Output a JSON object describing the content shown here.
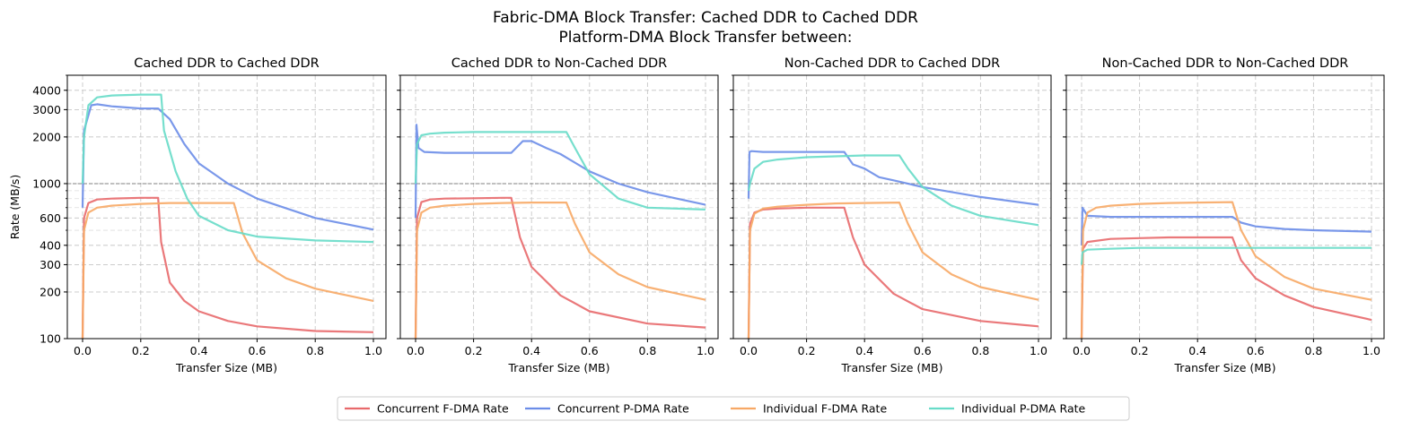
{
  "figure": {
    "title_line1": "Fabric-DMA Block Transfer: Cached DDR to Cached DDR",
    "title_line2": "Platform-DMA Block Transfer between:",
    "colors": {
      "concurrent_fdma": "#e8696b",
      "concurrent_pdma": "#6b8de8",
      "individual_fdma": "#f7a865",
      "individual_pdma": "#67dcc8"
    }
  },
  "legend": {
    "placement": "bottom-center",
    "entries": [
      {
        "key": "concurrent_fdma",
        "label": "Concurrent F-DMA Rate"
      },
      {
        "key": "concurrent_pdma",
        "label": "Concurrent P-DMA Rate"
      },
      {
        "key": "individual_fdma",
        "label": "Individual F-DMA Rate"
      },
      {
        "key": "individual_pdma",
        "label": "Individual P-DMA Rate"
      }
    ]
  },
  "chart_data": [
    {
      "type": "line",
      "title": "Cached DDR to Cached DDR",
      "xlabel": "Transfer Size (MB)",
      "ylabel": "Rate (MB/s)",
      "yscale": "log",
      "xlim": [
        0,
        1.0
      ],
      "ylim": [
        100,
        5000
      ],
      "xticks": [
        "0.0",
        "0.2",
        "0.4",
        "0.6",
        "0.8",
        "1.0"
      ],
      "yticks": [
        100,
        200,
        300,
        400,
        600,
        1000,
        2000,
        3000,
        4000
      ],
      "reference_line": 1000,
      "grid": true,
      "series": [
        {
          "key": "concurrent_fdma",
          "x": [
            0,
            0.005,
            0.02,
            0.05,
            0.1,
            0.2,
            0.26,
            0.27,
            0.3,
            0.35,
            0.4,
            0.5,
            0.6,
            0.8,
            1.0
          ],
          "y": [
            100,
            600,
            750,
            790,
            800,
            810,
            810,
            420,
            230,
            175,
            150,
            130,
            120,
            112,
            110
          ]
        },
        {
          "key": "concurrent_pdma",
          "x": [
            0,
            0.005,
            0.03,
            0.05,
            0.1,
            0.2,
            0.26,
            0.3,
            0.35,
            0.4,
            0.5,
            0.6,
            0.8,
            1.0
          ],
          "y": [
            700,
            2200,
            3200,
            3250,
            3150,
            3050,
            3050,
            2600,
            1800,
            1350,
            1000,
            800,
            600,
            505
          ]
        },
        {
          "key": "individual_fdma",
          "x": [
            0,
            0.005,
            0.02,
            0.05,
            0.1,
            0.2,
            0.3,
            0.4,
            0.52,
            0.55,
            0.6,
            0.7,
            0.8,
            1.0
          ],
          "y": [
            100,
            500,
            650,
            700,
            720,
            740,
            750,
            750,
            750,
            480,
            320,
            245,
            210,
            175
          ]
        },
        {
          "key": "individual_pdma",
          "x": [
            0,
            0.005,
            0.02,
            0.05,
            0.1,
            0.2,
            0.27,
            0.28,
            0.32,
            0.36,
            0.4,
            0.5,
            0.6,
            0.8,
            1.0
          ],
          "y": [
            1000,
            2000,
            3200,
            3600,
            3700,
            3750,
            3750,
            2200,
            1200,
            800,
            620,
            500,
            455,
            430,
            420
          ]
        }
      ]
    },
    {
      "type": "line",
      "title": "Cached DDR to Non-Cached DDR",
      "xlabel": "Transfer Size (MB)",
      "yscale": "log",
      "xlim": [
        0,
        1.0
      ],
      "ylim": [
        100,
        5000
      ],
      "xticks": [
        "0.0",
        "0.2",
        "0.4",
        "0.6",
        "0.8",
        "1.0"
      ],
      "reference_line": 1000,
      "grid": true,
      "series": [
        {
          "key": "concurrent_fdma",
          "x": [
            0,
            0.005,
            0.02,
            0.05,
            0.1,
            0.2,
            0.3,
            0.33,
            0.36,
            0.4,
            0.5,
            0.6,
            0.8,
            1.0
          ],
          "y": [
            100,
            600,
            760,
            790,
            800,
            805,
            810,
            810,
            450,
            290,
            190,
            150,
            125,
            118
          ]
        },
        {
          "key": "concurrent_pdma",
          "x": [
            0,
            0.003,
            0.01,
            0.03,
            0.1,
            0.2,
            0.33,
            0.37,
            0.4,
            0.45,
            0.5,
            0.6,
            0.7,
            0.8,
            1.0
          ],
          "y": [
            600,
            2400,
            1700,
            1600,
            1580,
            1580,
            1580,
            1880,
            1880,
            1700,
            1550,
            1200,
            1000,
            880,
            730
          ]
        },
        {
          "key": "individual_fdma",
          "x": [
            0,
            0.005,
            0.02,
            0.05,
            0.1,
            0.2,
            0.3,
            0.4,
            0.52,
            0.55,
            0.6,
            0.7,
            0.8,
            1.0
          ],
          "y": [
            100,
            500,
            650,
            700,
            720,
            740,
            750,
            755,
            755,
            550,
            360,
            260,
            215,
            178
          ]
        },
        {
          "key": "individual_pdma",
          "x": [
            0,
            0.005,
            0.02,
            0.05,
            0.1,
            0.2,
            0.3,
            0.4,
            0.52,
            0.55,
            0.6,
            0.7,
            0.8,
            1.0
          ],
          "y": [
            1000,
            1800,
            2050,
            2100,
            2130,
            2150,
            2150,
            2150,
            2150,
            1700,
            1150,
            800,
            700,
            680
          ]
        }
      ]
    },
    {
      "type": "line",
      "title": "Non-Cached DDR to Cached DDR",
      "xlabel": "Transfer Size (MB)",
      "yscale": "log",
      "xlim": [
        0,
        1.0
      ],
      "ylim": [
        100,
        5000
      ],
      "xticks": [
        "0.0",
        "0.2",
        "0.4",
        "0.6",
        "0.8",
        "1.0"
      ],
      "reference_line": 1000,
      "grid": true,
      "series": [
        {
          "key": "concurrent_fdma",
          "x": [
            0,
            0.005,
            0.02,
            0.05,
            0.1,
            0.2,
            0.33,
            0.36,
            0.4,
            0.5,
            0.6,
            0.8,
            1.0
          ],
          "y": [
            100,
            550,
            650,
            680,
            690,
            700,
            700,
            450,
            300,
            195,
            155,
            130,
            120
          ]
        },
        {
          "key": "concurrent_pdma",
          "x": [
            0,
            0.003,
            0.01,
            0.05,
            0.1,
            0.2,
            0.33,
            0.36,
            0.4,
            0.45,
            0.5,
            0.6,
            0.8,
            1.0
          ],
          "y": [
            800,
            1600,
            1620,
            1600,
            1600,
            1600,
            1600,
            1330,
            1250,
            1100,
            1050,
            950,
            820,
            730
          ]
        },
        {
          "key": "individual_fdma",
          "x": [
            0,
            0.005,
            0.02,
            0.05,
            0.1,
            0.2,
            0.3,
            0.4,
            0.52,
            0.55,
            0.6,
            0.7,
            0.8,
            1.0
          ],
          "y": [
            100,
            500,
            640,
            690,
            710,
            730,
            745,
            750,
            755,
            550,
            360,
            260,
            215,
            178
          ]
        },
        {
          "key": "individual_pdma",
          "x": [
            0,
            0.005,
            0.02,
            0.05,
            0.1,
            0.2,
            0.3,
            0.4,
            0.52,
            0.55,
            0.6,
            0.7,
            0.8,
            1.0
          ],
          "y": [
            900,
            1000,
            1250,
            1380,
            1430,
            1480,
            1500,
            1520,
            1520,
            1250,
            950,
            720,
            620,
            540
          ]
        }
      ]
    },
    {
      "type": "line",
      "title": "Non-Cached DDR to Non-Cached DDR",
      "xlabel": "Transfer Size (MB)",
      "yscale": "log",
      "xlim": [
        0,
        1.0
      ],
      "ylim": [
        100,
        5000
      ],
      "xticks": [
        "0.0",
        "0.2",
        "0.4",
        "0.6",
        "0.8",
        "1.0"
      ],
      "reference_line": 1000,
      "grid": true,
      "series": [
        {
          "key": "concurrent_fdma",
          "x": [
            0,
            0.005,
            0.02,
            0.1,
            0.2,
            0.3,
            0.4,
            0.52,
            0.55,
            0.6,
            0.7,
            0.8,
            1.0
          ],
          "y": [
            100,
            380,
            420,
            440,
            445,
            450,
            450,
            450,
            320,
            245,
            190,
            160,
            132
          ]
        },
        {
          "key": "concurrent_pdma",
          "x": [
            0,
            0.003,
            0.02,
            0.1,
            0.2,
            0.3,
            0.4,
            0.52,
            0.55,
            0.6,
            0.7,
            0.8,
            1.0
          ],
          "y": [
            400,
            700,
            620,
            610,
            610,
            610,
            610,
            610,
            560,
            530,
            510,
            500,
            490
          ]
        },
        {
          "key": "individual_fdma",
          "x": [
            0,
            0.005,
            0.02,
            0.05,
            0.1,
            0.2,
            0.3,
            0.4,
            0.52,
            0.55,
            0.6,
            0.7,
            0.8,
            1.0
          ],
          "y": [
            100,
            500,
            650,
            700,
            720,
            740,
            750,
            755,
            760,
            500,
            340,
            250,
            210,
            178
          ]
        },
        {
          "key": "individual_pdma",
          "x": [
            0,
            0.003,
            0.02,
            0.1,
            0.2,
            0.3,
            0.4,
            0.52,
            0.6,
            0.8,
            1.0
          ],
          "y": [
            300,
            360,
            375,
            380,
            385,
            385,
            385,
            385,
            385,
            385,
            385
          ]
        }
      ]
    }
  ]
}
